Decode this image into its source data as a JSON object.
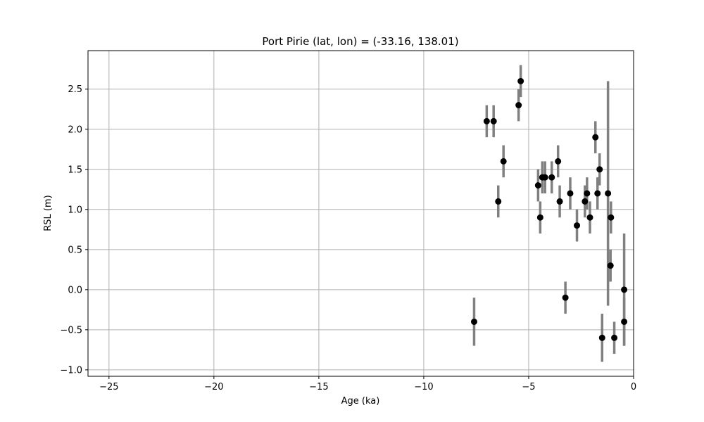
{
  "chart_data": {
    "type": "scatter",
    "title": "Port Pirie (lat, lon) = (-33.16, 138.01)",
    "xlabel": "Age (ka)",
    "ylabel": "RSL (m)",
    "xlim": [
      -26,
      0
    ],
    "ylim": [
      -1.08,
      2.98
    ],
    "x_ticks": [
      -25,
      -20,
      -15,
      -10,
      -5,
      0
    ],
    "x_tick_labels": [
      "−25",
      "−20",
      "−15",
      "−10",
      "−5",
      "0"
    ],
    "y_ticks": [
      -1.0,
      -0.5,
      0.0,
      0.5,
      1.0,
      1.5,
      2.0,
      2.5
    ],
    "y_tick_labels": [
      "−1.0",
      "−0.5",
      "0.0",
      "0.5",
      "1.0",
      "1.5",
      "2.0",
      "2.5"
    ],
    "grid": true,
    "colors": {
      "marker": "#000000",
      "errorbar": "#808080",
      "grid": "#b0b0b0"
    },
    "points": [
      {
        "x": -7.6,
        "y": -0.4,
        "err": 0.3
      },
      {
        "x": -7.0,
        "y": 2.1,
        "err": 0.2
      },
      {
        "x": -6.67,
        "y": 2.1,
        "err": 0.2
      },
      {
        "x": -6.45,
        "y": 1.1,
        "err": 0.2
      },
      {
        "x": -6.2,
        "y": 1.6,
        "err": 0.2
      },
      {
        "x": -5.48,
        "y": 2.3,
        "err": 0.2
      },
      {
        "x": -5.38,
        "y": 2.6,
        "err": 0.2
      },
      {
        "x": -4.55,
        "y": 1.3,
        "err": 0.2
      },
      {
        "x": -4.45,
        "y": 0.9,
        "err": 0.2
      },
      {
        "x": -4.35,
        "y": 1.4,
        "err": 0.2
      },
      {
        "x": -4.22,
        "y": 1.4,
        "err": 0.2
      },
      {
        "x": -3.9,
        "y": 1.4,
        "err": 0.2
      },
      {
        "x": -3.6,
        "y": 1.6,
        "err": 0.2
      },
      {
        "x": -3.52,
        "y": 1.1,
        "err": 0.2
      },
      {
        "x": -3.25,
        "y": -0.1,
        "err": 0.2
      },
      {
        "x": -3.02,
        "y": 1.2,
        "err": 0.2
      },
      {
        "x": -2.7,
        "y": 0.8,
        "err": 0.2
      },
      {
        "x": -2.32,
        "y": 1.1,
        "err": 0.2
      },
      {
        "x": -2.22,
        "y": 1.2,
        "err": 0.2
      },
      {
        "x": -2.08,
        "y": 0.9,
        "err": 0.2
      },
      {
        "x": -1.82,
        "y": 1.9,
        "err": 0.2
      },
      {
        "x": -1.72,
        "y": 1.2,
        "err": 0.2
      },
      {
        "x": -1.62,
        "y": 1.5,
        "err": 0.2
      },
      {
        "x": -1.5,
        "y": -0.6,
        "err": 0.3
      },
      {
        "x": -1.22,
        "y": 1.2,
        "err": 1.4
      },
      {
        "x": -1.08,
        "y": 0.9,
        "err": 0.2
      },
      {
        "x": -1.1,
        "y": 0.3,
        "err": 0.2
      },
      {
        "x": -0.92,
        "y": -0.6,
        "err": 0.2
      },
      {
        "x": -0.45,
        "y": 0.0,
        "err": 0.7
      },
      {
        "x": -0.45,
        "y": -0.4,
        "err": 0.3
      }
    ]
  }
}
